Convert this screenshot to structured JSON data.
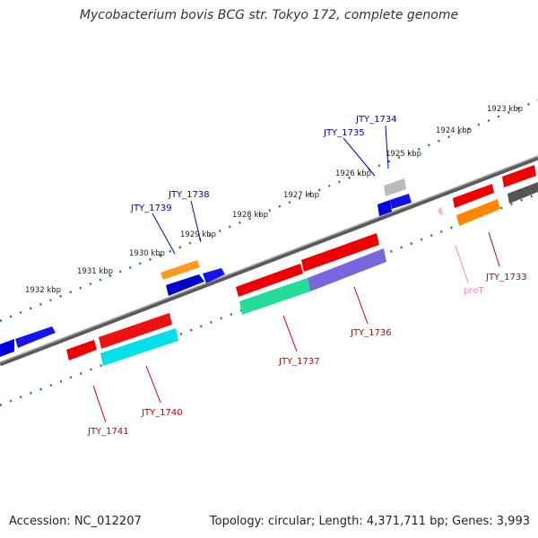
{
  "title": "Mycobacterium bovis BCG str. Tokyo 172, complete genome",
  "footer": {
    "accession": "Accession: NC_012207",
    "summary": "Topology: circular; Length: 4,371,711 bp; Genes: 3,993"
  },
  "kbp_ticks": [
    "1923 kbp",
    "1924 kbp",
    "1925 kbp",
    "1926 kbp",
    "1927 kbp",
    "1928 kbp",
    "1929 kbp",
    "1930 kbp",
    "1931 kbp",
    "1932 kbp"
  ],
  "gene_labels_forward": [
    "JTY_1734",
    "JTY_1735",
    "JTY_1738",
    "JTY_1739"
  ],
  "gene_labels_reverse": [
    "JTY_1733",
    "JTY_1736",
    "JTY_1737",
    "JTY_1740",
    "JTY_1741"
  ],
  "feature_labels": [
    "proT"
  ],
  "colors": {
    "forward_label": "#0000cc",
    "reverse_label": "#cc0000",
    "trna_label": "#ee88bb",
    "cds_red": "#ee0000",
    "cds_blue": "#0000dd",
    "cds_orange": "#ff8800",
    "cds_cyan": "#00e0e8",
    "cds_green": "#22dd99",
    "cds_purple": "#7766dd",
    "backbone": "#888888",
    "tick_dots": "#228822"
  }
}
